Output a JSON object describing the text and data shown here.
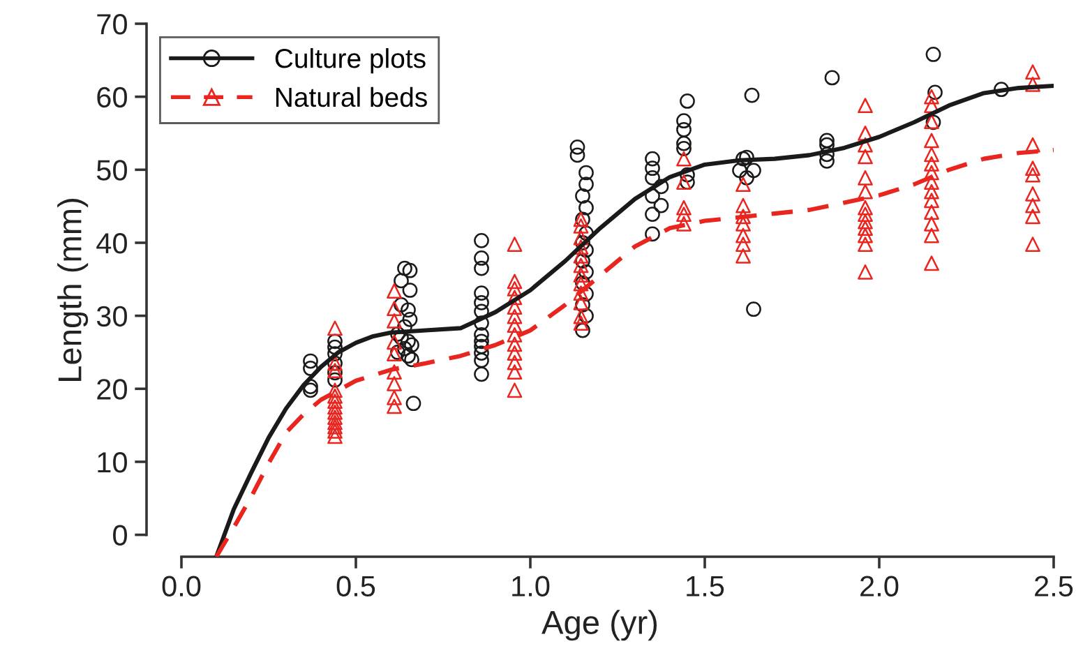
{
  "chart_data": {
    "type": "scatter",
    "xlabel": "Age (yr)",
    "ylabel": "Length (mm)",
    "xlim": [
      -0.1,
      2.5
    ],
    "ylim": [
      -3,
      70
    ],
    "xticks": [
      {
        "value": 0,
        "label": "0.0"
      },
      0.5,
      {
        "value": 1,
        "label": "1.0"
      },
      1.5,
      {
        "value": 2,
        "label": "2.0"
      },
      2.5
    ],
    "yticks": [
      0,
      10,
      20,
      30,
      40,
      50,
      60,
      70
    ],
    "grid": false,
    "legend": "top left",
    "series": [
      {
        "name": "Culture plots",
        "marker": "circle",
        "color": "#1a1a1a",
        "x": [
          0.37,
          0.37,
          0.37,
          0.37,
          0.44,
          0.44,
          0.44,
          0.44,
          0.44,
          0.44,
          0.64,
          0.655,
          0.63,
          0.655,
          0.63,
          0.65,
          0.655,
          0.64,
          0.62,
          0.63,
          0.65,
          0.66,
          0.64,
          0.62,
          0.65,
          0.66,
          0.665,
          0.86,
          0.86,
          0.86,
          0.86,
          0.86,
          0.86,
          0.86,
          0.86,
          0.86,
          0.86,
          0.86,
          0.86,
          0.86,
          1.135,
          1.135,
          1.16,
          1.16,
          1.15,
          1.16,
          1.15,
          1.16,
          1.15,
          1.16,
          1.15,
          1.16,
          1.15,
          1.16,
          1.15,
          1.16,
          1.15,
          1.35,
          1.35,
          1.35,
          1.375,
          1.35,
          1.375,
          1.35,
          1.35,
          1.45,
          1.44,
          1.44,
          1.44,
          1.44,
          1.45,
          1.45,
          1.61,
          1.62,
          1.6,
          1.64,
          1.62,
          1.635,
          1.64,
          1.85,
          1.85,
          1.85,
          1.85,
          1.865,
          2.155,
          2.16,
          2.155,
          2.35
        ],
        "values": [
          23.8,
          22.8,
          20.3,
          19.8,
          26.5,
          25.7,
          24.8,
          23.5,
          22.2,
          21.2,
          36.5,
          36.2,
          34.8,
          33.5,
          31.5,
          30.8,
          29.5,
          28.5,
          27.5,
          27,
          26.5,
          26,
          25.5,
          25,
          24.5,
          24,
          18,
          40.3,
          37.9,
          36.5,
          33.1,
          31.8,
          30.6,
          29,
          27.4,
          26.5,
          25.8,
          24.9,
          23.9,
          22,
          53.1,
          52,
          49.6,
          48,
          46.4,
          44.8,
          43.2,
          41.3,
          40,
          39,
          37.5,
          36,
          34.5,
          33,
          31.5,
          30,
          28,
          51.5,
          50.2,
          48.9,
          47.7,
          46.4,
          45.1,
          43.9,
          41.2,
          59.4,
          56.7,
          55.5,
          53.6,
          52.9,
          49.3,
          48.3,
          51.5,
          51.7,
          49.9,
          49.9,
          48.9,
          60.2,
          30.9,
          54,
          53.4,
          52.1,
          51.2,
          62.6,
          65.8,
          60.6,
          56.5,
          61
        ]
      },
      {
        "name": "Natural beds",
        "marker": "triangle",
        "color": "#e8251f",
        "x": [
          0.44,
          0.44,
          0.44,
          0.44,
          0.44,
          0.44,
          0.44,
          0.44,
          0.44,
          0.44,
          0.44,
          0.44,
          0.44,
          0.61,
          0.61,
          0.61,
          0.61,
          0.61,
          0.61,
          0.61,
          0.61,
          0.61,
          0.955,
          0.955,
          0.955,
          0.955,
          0.955,
          0.955,
          0.955,
          0.955,
          0.955,
          0.955,
          0.955,
          0.955,
          0.955,
          1.145,
          1.145,
          1.145,
          1.145,
          1.145,
          1.145,
          1.145,
          1.145,
          1.145,
          1.145,
          1.145,
          1.145,
          1.44,
          1.44,
          1.44,
          1.44,
          1.44,
          1.61,
          1.61,
          1.61,
          1.61,
          1.61,
          1.61,
          1.61,
          1.96,
          1.96,
          1.96,
          1.96,
          1.96,
          1.96,
          1.96,
          1.96,
          1.96,
          1.96,
          1.96,
          1.96,
          1.96,
          2.15,
          2.15,
          2.15,
          2.15,
          2.15,
          2.15,
          2.15,
          2.15,
          2.15,
          2.15,
          2.15,
          2.15,
          2.15,
          2.15,
          2.44,
          2.44,
          2.44,
          2.44,
          2.44,
          2.44,
          2.44,
          2.44,
          2.44
        ],
        "values": [
          28.3,
          23.5,
          22.5,
          19.8,
          19,
          18.3,
          17.5,
          16.8,
          16.1,
          15.4,
          14.8,
          14.2,
          13.5,
          33.4,
          31,
          29.3,
          26.4,
          24.8,
          22.3,
          20.7,
          18.8,
          17.6,
          39.8,
          34.7,
          33.7,
          32.5,
          31.2,
          29.9,
          28.7,
          27.4,
          26.1,
          24.9,
          23.6,
          22.3,
          19.8,
          43.2,
          42.3,
          40.7,
          39.4,
          38.2,
          36.9,
          35.6,
          34.4,
          33.1,
          31.8,
          29.9,
          29,
          51.5,
          48.3,
          44.8,
          43.9,
          42.6,
          48,
          45.1,
          43.6,
          42.6,
          41,
          39.8,
          38.2,
          58.8,
          55,
          53.4,
          51.8,
          48.9,
          47,
          44.8,
          43.9,
          42.9,
          42,
          41,
          39.8,
          36,
          60,
          58.8,
          56.6,
          54,
          52.1,
          50.8,
          49.6,
          48.3,
          47,
          45.8,
          44.2,
          42.6,
          41,
          37.2,
          63.4,
          61.7,
          53.4,
          50.2,
          49.3,
          46.7,
          45.1,
          43.6,
          39.8
        ]
      },
      {
        "type": "line",
        "line_style": "solid",
        "color": "#1a1a1a",
        "x": [
          0.1,
          0.15,
          0.2,
          0.25,
          0.3,
          0.35,
          0.4,
          0.45,
          0.5,
          0.55,
          0.6,
          0.7,
          0.8,
          0.9,
          1.0,
          1.1,
          1.2,
          1.3,
          1.4,
          1.5,
          1.6,
          1.7,
          1.8,
          1.9,
          2.0,
          2.1,
          2.2,
          2.3,
          2.4,
          2.5
        ],
        "values": [
          -3,
          3.5,
          8.5,
          13.3,
          17.3,
          20.5,
          23,
          25,
          26.3,
          27.2,
          27.7,
          28,
          28.3,
          30.5,
          33.5,
          37.5,
          42,
          46,
          49,
          50.7,
          51.3,
          51.5,
          52,
          53,
          54.5,
          56.5,
          58.8,
          60.5,
          61.2,
          61.5
        ]
      },
      {
        "type": "line",
        "line_style": "dashed",
        "color": "#e8251f",
        "x": [
          0.1,
          0.15,
          0.2,
          0.25,
          0.3,
          0.35,
          0.4,
          0.5,
          0.6,
          0.7,
          0.8,
          0.9,
          1.0,
          1.1,
          1.2,
          1.3,
          1.4,
          1.5,
          1.6,
          1.7,
          1.8,
          1.9,
          2.0,
          2.1,
          2.2,
          2.3,
          2.4,
          2.5
        ],
        "values": [
          -3,
          1,
          5.2,
          9.8,
          14,
          16.5,
          18.5,
          21.1,
          22.6,
          23.5,
          24.5,
          26,
          28,
          31.5,
          35.5,
          39.5,
          42,
          43,
          43.5,
          44,
          44.5,
          45.5,
          46.5,
          48,
          50,
          51.5,
          52.3,
          52.7
        ]
      }
    ]
  }
}
